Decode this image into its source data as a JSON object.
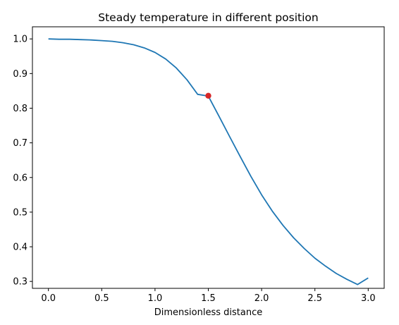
{
  "chart_data": {
    "type": "line",
    "title": "Steady temperature in different position",
    "xlabel": "Dimensionless distance",
    "ylabel": "",
    "xlim": [
      -0.15,
      3.15
    ],
    "ylim": [
      0.28,
      1.035
    ],
    "xticks": [
      0.0,
      0.5,
      1.0,
      1.5,
      2.0,
      2.5,
      3.0
    ],
    "xtick_labels": [
      "0.0",
      "0.5",
      "1.0",
      "1.5",
      "2.0",
      "2.5",
      "3.0"
    ],
    "yticks": [
      0.3,
      0.4,
      0.5,
      0.6,
      0.7,
      0.8,
      0.9,
      1.0
    ],
    "ytick_labels": [
      "0.3",
      "0.4",
      "0.5",
      "0.6",
      "0.7",
      "0.8",
      "0.9",
      "1.0"
    ],
    "grid": false,
    "series": [
      {
        "color": "#1f77b4",
        "x": [
          0.0,
          0.1,
          0.2,
          0.3,
          0.4,
          0.5,
          0.6,
          0.7,
          0.8,
          0.9,
          1.0,
          1.1,
          1.2,
          1.3,
          1.4,
          1.5,
          1.6,
          1.7,
          1.8,
          1.9,
          2.0,
          2.1,
          2.2,
          2.3,
          2.4,
          2.5,
          2.6,
          2.7,
          2.8,
          2.9,
          3.0
        ],
        "y": [
          1.0,
          0.999,
          0.999,
          0.998,
          0.997,
          0.995,
          0.993,
          0.989,
          0.983,
          0.974,
          0.961,
          0.942,
          0.916,
          0.882,
          0.84,
          0.835,
          0.777,
          0.718,
          0.66,
          0.603,
          0.55,
          0.503,
          0.462,
          0.426,
          0.395,
          0.367,
          0.344,
          0.323,
          0.306,
          0.291,
          0.31
        ]
      }
    ],
    "marker": {
      "x": 1.5,
      "y": 0.836,
      "color": "#d62728"
    }
  }
}
